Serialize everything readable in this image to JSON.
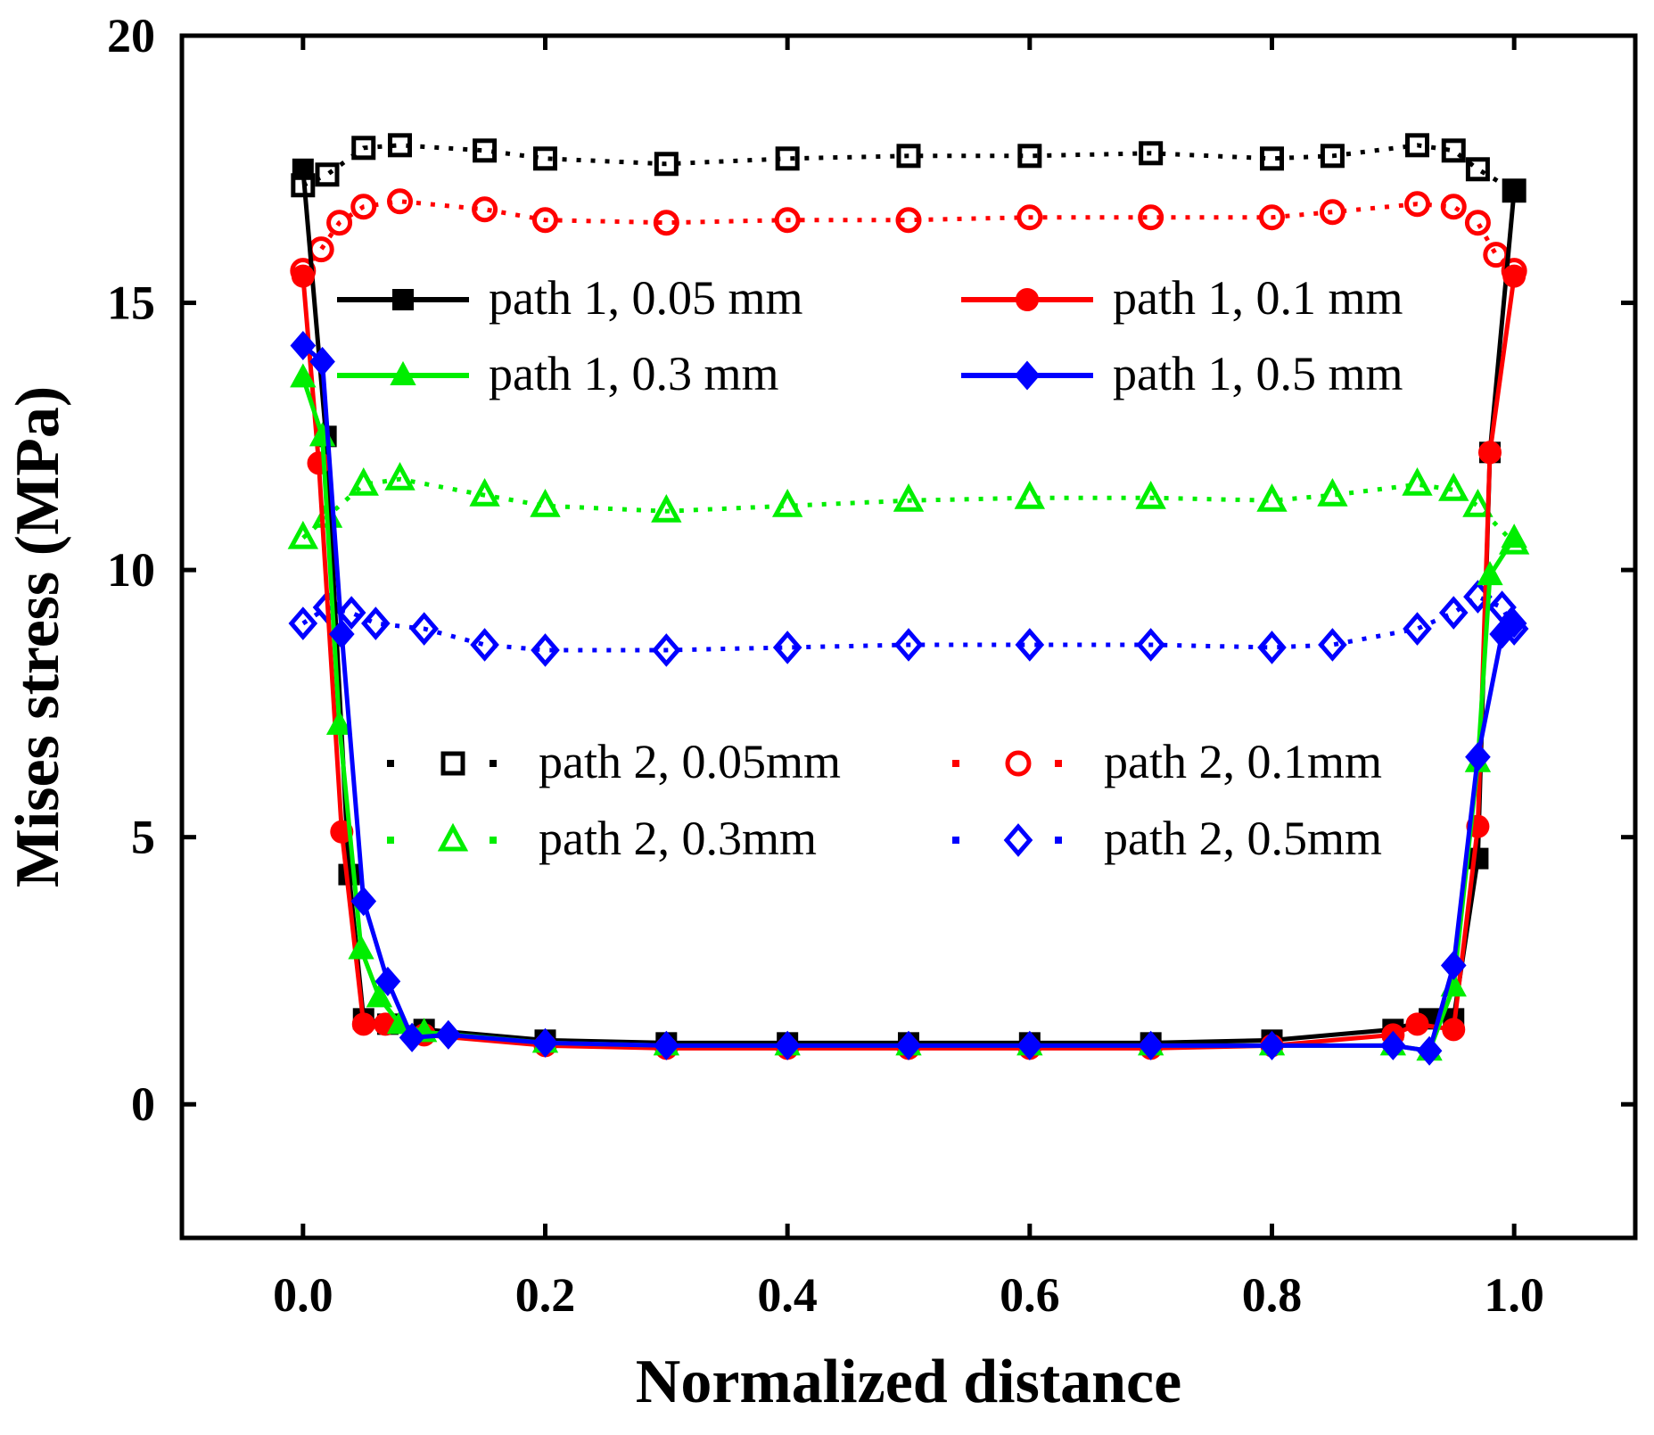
{
  "chart_data": {
    "type": "line",
    "title": "",
    "xlabel": "Normalized distance",
    "ylabel": "Mises stress (MPa)",
    "xlim": [
      -0.1,
      1.1
    ],
    "ylim": [
      -2.5,
      20
    ],
    "xticks": [
      0.0,
      0.2,
      0.4,
      0.6,
      0.8,
      1.0
    ],
    "xtick_labels": [
      "0.0",
      "0.2",
      "0.4",
      "0.6",
      "0.8",
      "1.0"
    ],
    "yticks": [
      0,
      5,
      10,
      15,
      20
    ],
    "ytick_labels": [
      "0",
      "5",
      "10",
      "15",
      "20"
    ],
    "grid": false,
    "series": [
      {
        "name": "path 1, 0.05 mm",
        "color": "#000000",
        "style": "solid",
        "marker": "square-filled",
        "x": [
          0.0,
          0.019,
          0.038,
          0.05,
          0.07,
          0.1,
          0.2,
          0.3,
          0.4,
          0.5,
          0.6,
          0.7,
          0.8,
          0.9,
          0.93,
          0.95,
          0.97,
          0.98,
          1.0
        ],
        "y": [
          17.5,
          12.5,
          4.3,
          1.6,
          1.5,
          1.4,
          1.2,
          1.15,
          1.15,
          1.15,
          1.15,
          1.15,
          1.2,
          1.4,
          1.6,
          1.6,
          4.6,
          12.2,
          17.1
        ]
      },
      {
        "name": "path 1, 0.1 mm",
        "color": "#ff0000",
        "style": "solid",
        "marker": "circle-filled",
        "x": [
          0.0,
          0.013,
          0.032,
          0.05,
          0.068,
          0.1,
          0.2,
          0.3,
          0.4,
          0.5,
          0.6,
          0.7,
          0.8,
          0.9,
          0.92,
          0.95,
          0.97,
          0.98,
          1.0
        ],
        "y": [
          15.5,
          12.0,
          5.1,
          1.5,
          1.5,
          1.3,
          1.1,
          1.05,
          1.05,
          1.05,
          1.05,
          1.05,
          1.1,
          1.3,
          1.5,
          1.4,
          5.2,
          12.2,
          15.5
        ]
      },
      {
        "name": "path 1, 0.3 mm",
        "color": "#00ee00",
        "style": "solid",
        "marker": "triangle-filled",
        "x": [
          0.0,
          0.016,
          0.03,
          0.048,
          0.063,
          0.08,
          0.1,
          0.2,
          0.3,
          0.4,
          0.5,
          0.6,
          0.7,
          0.8,
          0.9,
          0.93,
          0.95,
          0.97,
          0.98,
          1.0
        ],
        "y": [
          13.6,
          12.5,
          7.1,
          2.9,
          2.0,
          1.5,
          1.35,
          1.15,
          1.1,
          1.1,
          1.1,
          1.1,
          1.1,
          1.1,
          1.1,
          1.0,
          2.2,
          6.4,
          9.9,
          10.6
        ]
      },
      {
        "name": "path 1, 0.5 mm",
        "color": "#0000ff",
        "style": "solid",
        "marker": "diamond-filled",
        "x": [
          0.0,
          0.016,
          0.032,
          0.05,
          0.07,
          0.09,
          0.12,
          0.2,
          0.3,
          0.4,
          0.5,
          0.6,
          0.7,
          0.8,
          0.9,
          0.93,
          0.95,
          0.97,
          0.99,
          1.0
        ],
        "y": [
          14.2,
          13.9,
          8.8,
          3.8,
          2.3,
          1.25,
          1.3,
          1.15,
          1.1,
          1.1,
          1.1,
          1.1,
          1.1,
          1.1,
          1.1,
          1.0,
          2.6,
          6.5,
          8.8,
          9.0
        ]
      },
      {
        "name": "path 2, 0.05mm",
        "color": "#000000",
        "style": "dotted",
        "marker": "square-open",
        "x": [
          0.0,
          0.02,
          0.05,
          0.08,
          0.15,
          0.2,
          0.3,
          0.4,
          0.5,
          0.6,
          0.7,
          0.8,
          0.85,
          0.92,
          0.95,
          0.97,
          1.0
        ],
        "y": [
          17.2,
          17.4,
          17.9,
          17.95,
          17.85,
          17.7,
          17.6,
          17.7,
          17.75,
          17.75,
          17.8,
          17.7,
          17.75,
          17.95,
          17.85,
          17.5,
          17.1
        ]
      },
      {
        "name": "path 2, 0.1mm",
        "color": "#ff0000",
        "style": "dotted",
        "marker": "circle-open",
        "x": [
          0.0,
          0.015,
          0.03,
          0.05,
          0.08,
          0.15,
          0.2,
          0.3,
          0.4,
          0.5,
          0.6,
          0.7,
          0.8,
          0.85,
          0.92,
          0.95,
          0.97,
          0.985,
          1.0
        ],
        "y": [
          15.6,
          16.0,
          16.5,
          16.8,
          16.9,
          16.75,
          16.55,
          16.5,
          16.55,
          16.55,
          16.6,
          16.6,
          16.6,
          16.7,
          16.85,
          16.8,
          16.5,
          15.9,
          15.6
        ]
      },
      {
        "name": "path 2, 0.3mm",
        "color": "#00ee00",
        "style": "dotted",
        "marker": "triangle-open",
        "x": [
          0.0,
          0.02,
          0.05,
          0.08,
          0.15,
          0.2,
          0.3,
          0.4,
          0.5,
          0.6,
          0.7,
          0.8,
          0.85,
          0.92,
          0.95,
          0.97,
          1.0
        ],
        "y": [
          10.6,
          11.0,
          11.6,
          11.7,
          11.4,
          11.2,
          11.1,
          11.2,
          11.3,
          11.35,
          11.35,
          11.3,
          11.4,
          11.6,
          11.5,
          11.2,
          10.5
        ]
      },
      {
        "name": "path 2, 0.5mm",
        "color": "#0000ff",
        "style": "dotted",
        "marker": "diamond-open",
        "x": [
          0.0,
          0.02,
          0.04,
          0.06,
          0.1,
          0.15,
          0.2,
          0.3,
          0.4,
          0.5,
          0.6,
          0.7,
          0.8,
          0.85,
          0.92,
          0.95,
          0.97,
          0.99,
          1.0
        ],
        "y": [
          9.0,
          9.3,
          9.2,
          9.0,
          8.9,
          8.6,
          8.5,
          8.5,
          8.55,
          8.6,
          8.6,
          8.6,
          8.55,
          8.6,
          8.9,
          9.2,
          9.5,
          9.3,
          8.9
        ]
      }
    ]
  }
}
